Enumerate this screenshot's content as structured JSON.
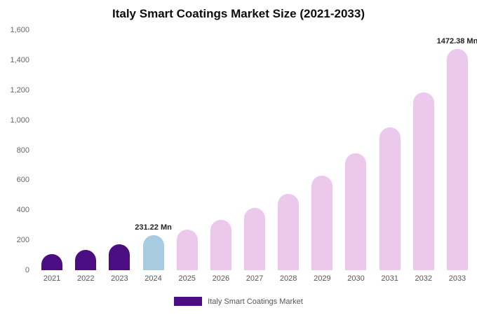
{
  "title": "Italy Smart Coatings Market Size (2021-2033)",
  "legend": {
    "label": "Italy Smart Coatings Market"
  },
  "colors": {
    "purple": "#4B0E82",
    "blue": "#A7CCE2",
    "pink": "#ECC9EC",
    "title_text": "#0d0d0d",
    "axis_text": "#666666",
    "annotation_text": "#222222"
  },
  "chart_data": {
    "type": "bar",
    "title": "Italy Smart Coatings Market Size (2021-2033)",
    "categories": [
      "2021",
      "2022",
      "2023",
      "2024",
      "2025",
      "2026",
      "2027",
      "2028",
      "2029",
      "2030",
      "2031",
      "2032",
      "2033"
    ],
    "values": [
      107,
      137,
      172,
      231.22,
      272,
      336,
      415,
      510,
      630,
      780,
      952,
      1185,
      1472.38
    ],
    "unit": "Mn",
    "xlabel": "",
    "ylabel": "",
    "ylim": [
      0,
      1600
    ],
    "y_ticks": [
      "0",
      "200",
      "400",
      "600",
      "800",
      "1,000",
      "1,200",
      "1,400",
      "1,600"
    ],
    "bar_colors": [
      "purple",
      "purple",
      "purple",
      "blue",
      "pink",
      "pink",
      "pink",
      "pink",
      "pink",
      "pink",
      "pink",
      "pink",
      "pink"
    ],
    "annotations": [
      {
        "index": 3,
        "text": "231.22 Mn"
      },
      {
        "index": 12,
        "text": "1472.38 Mn"
      }
    ],
    "grid": false,
    "legend_position": "bottom",
    "legend_entries": [
      {
        "label": "Italy Smart Coatings Market",
        "color": "purple"
      }
    ]
  }
}
